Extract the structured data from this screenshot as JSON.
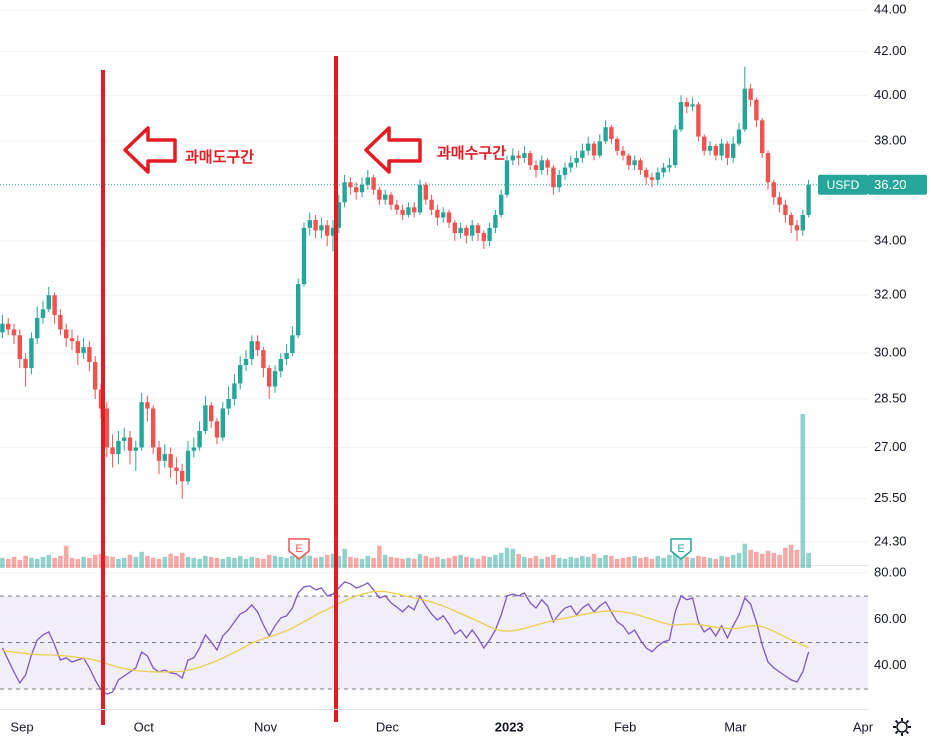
{
  "chart_data": {
    "type": "candlestick",
    "categories": [
      null,
      null,
      "Sep",
      null,
      null,
      null,
      null,
      null,
      null,
      null,
      null,
      null,
      null,
      null,
      null,
      null,
      null,
      null,
      null,
      null,
      null,
      null,
      null,
      "Oct",
      null,
      null,
      null,
      null,
      null,
      null,
      null,
      null,
      null,
      null,
      null,
      null,
      null,
      null,
      null,
      null,
      null,
      null,
      null,
      null,
      "Nov",
      null,
      null,
      null,
      null,
      null,
      null,
      null,
      null,
      null,
      null,
      null,
      null,
      null,
      null,
      null,
      null,
      null,
      null,
      null,
      null,
      "Dec",
      null,
      null,
      null,
      null,
      null,
      null,
      null,
      null,
      null,
      null,
      null,
      null,
      null,
      null,
      null,
      null,
      null,
      null,
      null,
      null,
      "2023",
      null,
      null,
      null,
      null,
      null,
      null,
      null,
      null,
      null,
      null,
      null,
      null,
      null,
      null,
      null,
      null,
      null,
      null,
      null,
      "Feb",
      null,
      null,
      null,
      null,
      null,
      null,
      null,
      null,
      null,
      null,
      null,
      null,
      null,
      null,
      null,
      null,
      null,
      null,
      "Mar",
      null,
      null,
      null,
      null,
      null,
      null,
      null,
      null,
      null,
      null,
      null,
      null,
      null,
      null,
      null,
      null,
      null,
      null,
      null,
      null,
      null,
      "Apr"
    ],
    "open": [
      30.7,
      31.0,
      30.8,
      30.6,
      29.8,
      29.5,
      30.5,
      31.2,
      31.5,
      32.0,
      31.3,
      30.8,
      30.5,
      30.4,
      30.0,
      30.2,
      29.7,
      28.8,
      28.2,
      27.0,
      26.8,
      27.2,
      27.3,
      26.9,
      27.0,
      28.4,
      28.2,
      27.0,
      26.6,
      26.8,
      26.4,
      26.3,
      26.0,
      26.9,
      27.0,
      27.5,
      28.3,
      27.8,
      27.3,
      28.2,
      28.5,
      29.0,
      29.6,
      29.8,
      30.4,
      30.1,
      29.5,
      28.9,
      29.4,
      29.8,
      30.0,
      30.6,
      32.4,
      34.5,
      34.8,
      34.4,
      34.6,
      34.2,
      34.5,
      35.5,
      36.3,
      36.1,
      35.9,
      36.2,
      36.5,
      36.0,
      35.6,
      35.8,
      35.4,
      35.2,
      35.0,
      35.3,
      35.1,
      36.2,
      35.6,
      35.2,
      34.9,
      35.1,
      34.7,
      34.3,
      34.5,
      34.2,
      34.6,
      34.3,
      34.0,
      34.5,
      35.0,
      35.8,
      37.2,
      37.4,
      37.3,
      37.5,
      37.0,
      36.8,
      37.2,
      36.9,
      36.1,
      36.6,
      36.9,
      37.1,
      37.3,
      37.6,
      37.9,
      37.4,
      38.0,
      38.6,
      38.1,
      37.6,
      37.4,
      37.0,
      37.2,
      36.8,
      36.5,
      36.4,
      36.7,
      36.9,
      37.0,
      38.5,
      39.7,
      39.5,
      39.6,
      38.2,
      37.6,
      37.8,
      37.4,
      37.9,
      37.3,
      37.9,
      38.5,
      40.3,
      39.8,
      38.9,
      37.5,
      36.3,
      35.7,
      35.4,
      35.0,
      34.6,
      34.4,
      35.0,
      null,
      null,
      null,
      null,
      null,
      null,
      null,
      null
    ],
    "high": [
      31.3,
      31.2,
      31.0,
      30.8,
      30.0,
      30.7,
      31.6,
      31.8,
      32.3,
      32.1,
      31.5,
      31.0,
      30.8,
      30.6,
      30.5,
      30.4,
      29.9,
      29.0,
      28.4,
      27.4,
      27.5,
      27.6,
      27.5,
      27.2,
      28.7,
      28.6,
      28.3,
      27.2,
      27.1,
      27.0,
      26.7,
      26.5,
      27.2,
      27.3,
      27.8,
      28.6,
      28.4,
      27.9,
      28.4,
      28.9,
      29.3,
      29.9,
      30.1,
      30.6,
      30.6,
      30.2,
      29.6,
      29.6,
      30.0,
      30.3,
      30.9,
      32.6,
      34.7,
      35.1,
      35.0,
      34.9,
      34.8,
      34.8,
      35.8,
      36.6,
      36.5,
      36.3,
      36.5,
      36.8,
      36.6,
      36.1,
      36.0,
      35.9,
      35.6,
      35.4,
      35.5,
      35.5,
      36.4,
      36.3,
      35.8,
      35.4,
      35.3,
      35.2,
      34.8,
      34.7,
      34.6,
      34.8,
      34.7,
      34.4,
      34.7,
      35.2,
      36.0,
      37.4,
      37.7,
      37.6,
      37.8,
      37.6,
      37.2,
      37.4,
      37.3,
      37.0,
      36.8,
      37.1,
      37.4,
      37.6,
      37.9,
      38.2,
      38.0,
      38.3,
      38.9,
      38.7,
      38.2,
      37.8,
      37.5,
      37.4,
      37.3,
      36.9,
      36.7,
      36.9,
      37.1,
      37.3,
      38.7,
      40.0,
      39.9,
      39.9,
      39.7,
      38.3,
      38.0,
      37.9,
      38.1,
      38.0,
      38.2,
      38.8,
      41.3,
      40.5,
      39.9,
      39.0,
      37.6,
      36.4,
      35.9,
      35.6,
      35.1,
      34.8,
      35.2,
      36.4,
      null,
      null,
      null,
      null,
      null,
      null,
      null,
      null
    ],
    "low": [
      30.5,
      30.6,
      30.3,
      29.5,
      28.9,
      29.3,
      30.3,
      31.0,
      31.4,
      31.0,
      30.6,
      30.2,
      30.1,
      29.6,
      29.8,
      29.4,
      28.5,
      27.9,
      26.7,
      26.4,
      26.5,
      26.9,
      26.5,
      26.3,
      26.9,
      27.8,
      26.8,
      26.2,
      26.4,
      26.1,
      25.9,
      25.5,
      25.9,
      26.7,
      26.9,
      27.4,
      27.6,
      27.1,
      27.2,
      28.0,
      28.3,
      28.8,
      29.4,
      29.6,
      29.9,
      29.2,
      28.5,
      28.7,
      29.2,
      29.6,
      29.9,
      30.5,
      32.3,
      34.2,
      34.1,
      34.1,
      33.8,
      33.6,
      34.3,
      35.3,
      35.8,
      35.6,
      35.7,
      36.0,
      35.8,
      35.4,
      35.4,
      35.2,
      35.0,
      34.8,
      34.9,
      34.9,
      35.0,
      35.4,
      35.0,
      34.6,
      34.7,
      34.5,
      34.0,
      34.1,
      33.9,
      34.0,
      34.0,
      33.7,
      33.8,
      34.3,
      34.9,
      35.7,
      37.0,
      37.0,
      37.1,
      36.8,
      36.5,
      36.6,
      36.6,
      35.8,
      35.9,
      36.4,
      36.7,
      36.9,
      37.1,
      37.4,
      37.2,
      37.3,
      37.9,
      37.9,
      37.4,
      37.2,
      36.8,
      36.8,
      36.6,
      36.2,
      36.1,
      36.2,
      36.5,
      36.7,
      36.9,
      38.4,
      39.2,
      39.3,
      38.0,
      37.4,
      37.4,
      37.2,
      37.2,
      37.0,
      37.1,
      37.8,
      38.4,
      39.5,
      38.6,
      37.3,
      36.0,
      35.4,
      35.1,
      34.7,
      34.3,
      34.0,
      34.2,
      34.9,
      null,
      null,
      null,
      null,
      null,
      null,
      null,
      null
    ],
    "close": [
      31.0,
      30.8,
      30.6,
      29.8,
      29.5,
      30.5,
      31.2,
      31.5,
      32.0,
      31.3,
      30.8,
      30.5,
      30.4,
      30.0,
      30.2,
      29.7,
      28.8,
      28.2,
      27.0,
      26.8,
      27.2,
      27.3,
      26.9,
      27.0,
      28.4,
      28.2,
      27.0,
      26.6,
      26.8,
      26.4,
      26.3,
      26.0,
      26.9,
      27.0,
      27.5,
      28.3,
      27.8,
      27.3,
      28.2,
      28.5,
      29.0,
      29.6,
      29.8,
      30.4,
      30.1,
      29.5,
      28.9,
      29.4,
      29.8,
      30.0,
      30.6,
      32.4,
      34.5,
      34.8,
      34.4,
      34.6,
      34.2,
      34.5,
      35.5,
      36.3,
      36.1,
      35.9,
      36.2,
      36.5,
      36.0,
      35.6,
      35.8,
      35.4,
      35.2,
      35.0,
      35.3,
      35.1,
      36.2,
      35.6,
      35.2,
      34.9,
      35.1,
      34.7,
      34.3,
      34.5,
      34.2,
      34.6,
      34.3,
      34.0,
      34.5,
      35.0,
      35.8,
      37.2,
      37.4,
      37.3,
      37.5,
      37.0,
      36.8,
      37.2,
      36.9,
      36.1,
      36.6,
      36.9,
      37.1,
      37.3,
      37.6,
      37.9,
      37.4,
      38.0,
      38.6,
      38.1,
      37.6,
      37.4,
      37.0,
      37.2,
      36.8,
      36.5,
      36.4,
      36.7,
      36.9,
      37.0,
      38.5,
      39.7,
      39.5,
      39.6,
      38.2,
      37.6,
      37.8,
      37.4,
      37.9,
      37.3,
      37.9,
      38.5,
      40.3,
      39.8,
      38.9,
      37.5,
      36.3,
      35.7,
      35.4,
      35.0,
      34.6,
      34.4,
      35.0,
      36.2,
      null,
      null,
      null,
      null,
      null,
      null,
      null,
      null
    ],
    "volume": [
      10,
      9,
      11,
      8,
      12,
      10,
      9,
      11,
      13,
      10,
      12,
      22,
      10,
      9,
      11,
      10,
      13,
      14,
      12,
      11,
      9,
      10,
      13,
      11,
      16,
      12,
      10,
      9,
      11,
      14,
      12,
      15,
      11,
      10,
      9,
      12,
      11,
      10,
      9,
      11,
      10,
      12,
      9,
      11,
      10,
      9,
      13,
      12,
      11,
      10,
      12,
      18,
      16,
      12,
      10,
      11,
      13,
      14,
      12,
      19,
      11,
      10,
      9,
      12,
      10,
      22,
      13,
      11,
      10,
      9,
      10,
      9,
      14,
      12,
      10,
      11,
      9,
      10,
      12,
      13,
      11,
      10,
      9,
      12,
      11,
      13,
      15,
      20,
      19,
      14,
      11,
      10,
      12,
      9,
      11,
      13,
      10,
      9,
      11,
      10,
      12,
      11,
      14,
      10,
      13,
      12,
      9,
      10,
      11,
      12,
      10,
      11,
      9,
      12,
      10,
      13,
      15,
      14,
      11,
      10,
      12,
      11,
      10,
      9,
      12,
      11,
      13,
      15,
      24,
      18,
      16,
      14,
      17,
      15,
      13,
      20,
      23,
      18,
      152,
      15,
      null,
      null,
      null,
      null,
      null,
      null,
      null,
      null
    ],
    "up_color": "#26a69a",
    "down_color": "#ef5350",
    "log_scale": true,
    "ylim": [
      23.68,
      44.49
    ],
    "yticks": [
      {
        "value": 44,
        "label": "44.00"
      },
      {
        "value": 42,
        "label": "42.00"
      },
      {
        "value": 40,
        "label": "40.00"
      },
      {
        "value": 38,
        "label": "38.00"
      },
      {
        "value": 34,
        "label": "34.00"
      },
      {
        "value": 32,
        "label": "32.00"
      },
      {
        "value": 30,
        "label": "30.00"
      },
      {
        "value": 28.5,
        "label": "28.50"
      },
      {
        "value": 27,
        "label": "27.00"
      },
      {
        "value": 25.5,
        "label": "25.50"
      },
      {
        "value": 24.3,
        "label": "24.30"
      }
    ],
    "grid": true,
    "last_price": {
      "symbol": "USFD",
      "value": 36.2,
      "label": "36.20"
    },
    "earnings": [
      "E",
      "E"
    ],
    "annotations": [
      "과매도구간",
      "과매수구간"
    ],
    "rsi": {
      "type": "line",
      "ylim": [
        23.1,
        83.4
      ],
      "yticks": [
        {
          "value": 80,
          "label": "80.00"
        },
        {
          "value": 60,
          "label": "60.00"
        },
        {
          "value": 40,
          "label": "40.00"
        }
      ],
      "levels": [
        70,
        50,
        30
      ],
      "band_color": "#7e57c2",
      "series": [
        {
          "color": "#7e57c2",
          "values": [
            47.7,
            42.5,
            37.3,
            32.6,
            36.0,
            44.7,
            51.1,
            53.3,
            54.6,
            49.0,
            42.5,
            43.4,
            41.6,
            42.5,
            43.4,
            39.1,
            33.9,
            29.6,
            27.8,
            28.7,
            33.9,
            35.6,
            37.3,
            39.1,
            45.9,
            44.2,
            39.1,
            37.3,
            38.2,
            36.9,
            36.5,
            34.7,
            42.5,
            43.4,
            47.7,
            53.3,
            50.3,
            46.8,
            52.8,
            55.4,
            58.9,
            62.3,
            63.6,
            66.2,
            63.2,
            57.6,
            52.8,
            57.2,
            60.6,
            61.5,
            64.9,
            71.4,
            74.0,
            74.4,
            72.7,
            73.5,
            70.1,
            70.9,
            73.5,
            76.1,
            75.3,
            73.5,
            74.4,
            75.7,
            72.7,
            69.2,
            70.1,
            67.1,
            65.3,
            63.2,
            65.8,
            64.1,
            70.1,
            65.8,
            62.3,
            59.7,
            61.5,
            58.0,
            53.7,
            55.4,
            52.0,
            55.4,
            52.0,
            47.7,
            51.1,
            55.4,
            61.9,
            70.1,
            70.9,
            70.1,
            71.4,
            67.1,
            64.9,
            68.4,
            65.8,
            58.9,
            62.3,
            64.9,
            65.8,
            61.9,
            64.9,
            66.6,
            63.2,
            65.8,
            67.5,
            63.2,
            58.9,
            57.2,
            53.7,
            55.4,
            51.1,
            47.7,
            46.0,
            48.5,
            50.3,
            51.1,
            63.2,
            70.1,
            68.4,
            69.2,
            58.9,
            54.6,
            56.3,
            52.8,
            57.2,
            52.0,
            57.2,
            61.9,
            69.2,
            66.6,
            58.9,
            49.0,
            41.6,
            39.1,
            37.3,
            35.6,
            33.9,
            33.0,
            37.3,
            46.0,
            null,
            null,
            null,
            null,
            null,
            null,
            null,
            null
          ]
        },
        {
          "color": "#e8cf4f",
          "values": [
            46.5,
            46.2,
            45.9,
            45.6,
            45.3,
            45.0,
            44.8,
            44.7,
            44.7,
            44.6,
            44.4,
            44.2,
            43.9,
            43.6,
            43.3,
            43.0,
            42.4,
            41.7,
            40.9,
            40.1,
            39.4,
            38.8,
            38.3,
            37.9,
            37.7,
            37.5,
            37.4,
            37.3,
            37.3,
            37.4,
            37.5,
            37.7,
            38.1,
            38.6,
            39.4,
            40.3,
            41.2,
            42.2,
            43.3,
            44.5,
            45.8,
            47.1,
            48.4,
            49.7,
            50.8,
            51.7,
            52.4,
            53.2,
            54.1,
            55.1,
            56.2,
            57.6,
            59.0,
            60.4,
            61.8,
            63.1,
            64.3,
            65.5,
            66.8,
            68.0,
            69.1,
            70.0,
            70.8,
            71.5,
            72.0,
            72.1,
            71.9,
            71.5,
            71.0,
            70.4,
            69.8,
            69.2,
            68.7,
            68.1,
            67.4,
            66.6,
            65.7,
            64.7,
            63.6,
            62.5,
            61.4,
            60.3,
            59.2,
            58.0,
            56.8,
            55.8,
            55.1,
            54.9,
            55.1,
            55.5,
            56.1,
            56.8,
            57.5,
            58.2,
            58.9,
            59.5,
            60.0,
            60.5,
            61.0,
            61.5,
            62.0,
            62.5,
            62.9,
            63.2,
            63.5,
            63.6,
            63.5,
            63.2,
            62.8,
            62.3,
            61.6,
            60.8,
            60.0,
            59.2,
            58.4,
            57.8,
            57.6,
            57.7,
            57.9,
            58.0,
            57.8,
            57.4,
            57.0,
            56.6,
            56.3,
            56.1,
            56.0,
            56.2,
            56.7,
            57.2,
            57.3,
            56.8,
            55.9,
            54.8,
            53.6,
            52.4,
            51.2,
            50.0,
            48.9,
            47.8,
            null,
            null,
            null,
            null,
            null,
            null,
            null,
            null
          ]
        }
      ]
    }
  }
}
